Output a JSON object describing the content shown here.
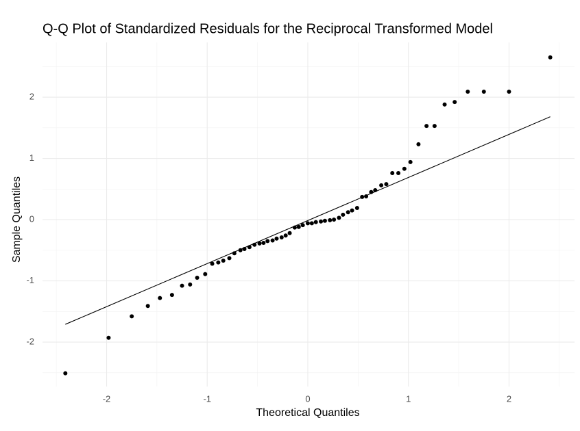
{
  "chart_data": {
    "type": "scatter",
    "title": "Q-Q Plot of Standardized Residuals for the Reciprocal Transformed Model",
    "x_label": "Theoretical Quantiles",
    "y_label": "Sample Quantiles",
    "x": [
      -2.41,
      -1.98,
      -1.75,
      -1.59,
      -1.47,
      -1.35,
      -1.25,
      -1.17,
      -1.1,
      -1.02,
      -0.95,
      -0.89,
      -0.84,
      -0.78,
      -0.73,
      -0.67,
      -0.63,
      -0.58,
      -0.53,
      -0.48,
      -0.44,
      -0.4,
      -0.35,
      -0.31,
      -0.26,
      -0.22,
      -0.18,
      -0.13,
      -0.09,
      -0.05,
      0.0,
      0.04,
      0.08,
      0.13,
      0.17,
      0.22,
      0.26,
      0.31,
      0.35,
      0.4,
      0.44,
      0.49,
      0.54,
      0.58,
      0.63,
      0.67,
      0.73,
      0.78,
      0.84,
      0.9,
      0.96,
      1.02,
      1.1,
      1.18,
      1.26,
      1.36,
      1.46,
      1.59,
      1.75,
      2.0,
      2.41
    ],
    "values": [
      -2.51,
      -1.93,
      -1.58,
      -1.41,
      -1.28,
      -1.23,
      -1.08,
      -1.06,
      -0.95,
      -0.89,
      -0.72,
      -0.7,
      -0.67,
      -0.63,
      -0.55,
      -0.5,
      -0.48,
      -0.45,
      -0.41,
      -0.39,
      -0.38,
      -0.35,
      -0.34,
      -0.31,
      -0.29,
      -0.26,
      -0.22,
      -0.13,
      -0.12,
      -0.09,
      -0.06,
      -0.06,
      -0.04,
      -0.03,
      -0.02,
      -0.01,
      0.0,
      0.03,
      0.08,
      0.12,
      0.15,
      0.19,
      0.37,
      0.38,
      0.45,
      0.48,
      0.56,
      0.58,
      0.76,
      0.76,
      0.83,
      0.94,
      1.23,
      1.53,
      1.53,
      1.88,
      1.92,
      2.09,
      2.09,
      2.09,
      2.65
    ],
    "color": "#000000",
    "reference_line": {
      "x": [
        -2.41,
        2.41
      ],
      "y": [
        -1.71,
        1.68
      ]
    },
    "xlim": [
      -2.637,
      2.651
    ],
    "ylim": [
      -2.726,
      2.894
    ],
    "xticks": [
      -2,
      -1,
      0,
      1,
      2
    ],
    "yticks": [
      -2,
      -1,
      0,
      1,
      2
    ],
    "grid": true
  }
}
